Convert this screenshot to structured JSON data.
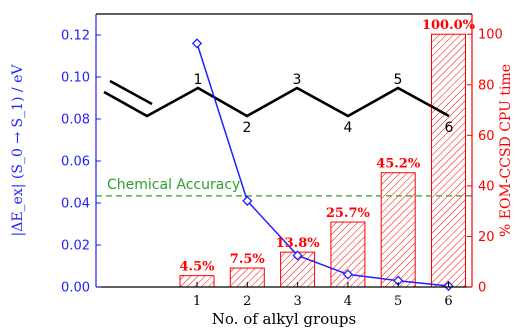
{
  "chart_data": {
    "type": "bar",
    "x_categories": [
      "1",
      "2",
      "3",
      "4",
      "5",
      "6"
    ],
    "xlabel": "No. of alkyl groups",
    "ylabel_left": "|ΔE_ex| (S_0 → S_1) / eV",
    "ylabel_right": "% EOM-CCSD CPU time",
    "ylim_left": [
      0,
      0.13
    ],
    "ylim_right": [
      0,
      108
    ],
    "yticks_left": [
      "0.00",
      "0.02",
      "0.04",
      "0.06",
      "0.08",
      "0.10",
      "0.12"
    ],
    "yticks_right": [
      "0",
      "20",
      "40",
      "60",
      "80",
      "100"
    ],
    "series": [
      {
        "name": "CPU time",
        "axis": "right",
        "kind": "bar",
        "values": [
          4.5,
          7.5,
          13.8,
          25.7,
          45.2,
          100.0
        ],
        "labels": [
          "4.5%",
          "7.5%",
          "13.8%",
          "25.7%",
          "45.2%",
          "100.0%"
        ],
        "color": "#ff0000"
      },
      {
        "name": "|ΔE_ex|",
        "axis": "left",
        "kind": "line",
        "values": [
          0.116,
          0.041,
          0.015,
          0.006,
          0.003,
          0.0005
        ],
        "color": "#1f1fff"
      }
    ],
    "annotation": {
      "text": "Chemical Accuracy",
      "value": 0.0434,
      "axis": "left",
      "color": "#2ca02c"
    },
    "molecule_labels": [
      "1",
      "2",
      "3",
      "4",
      "5",
      "6"
    ],
    "grid": false
  }
}
